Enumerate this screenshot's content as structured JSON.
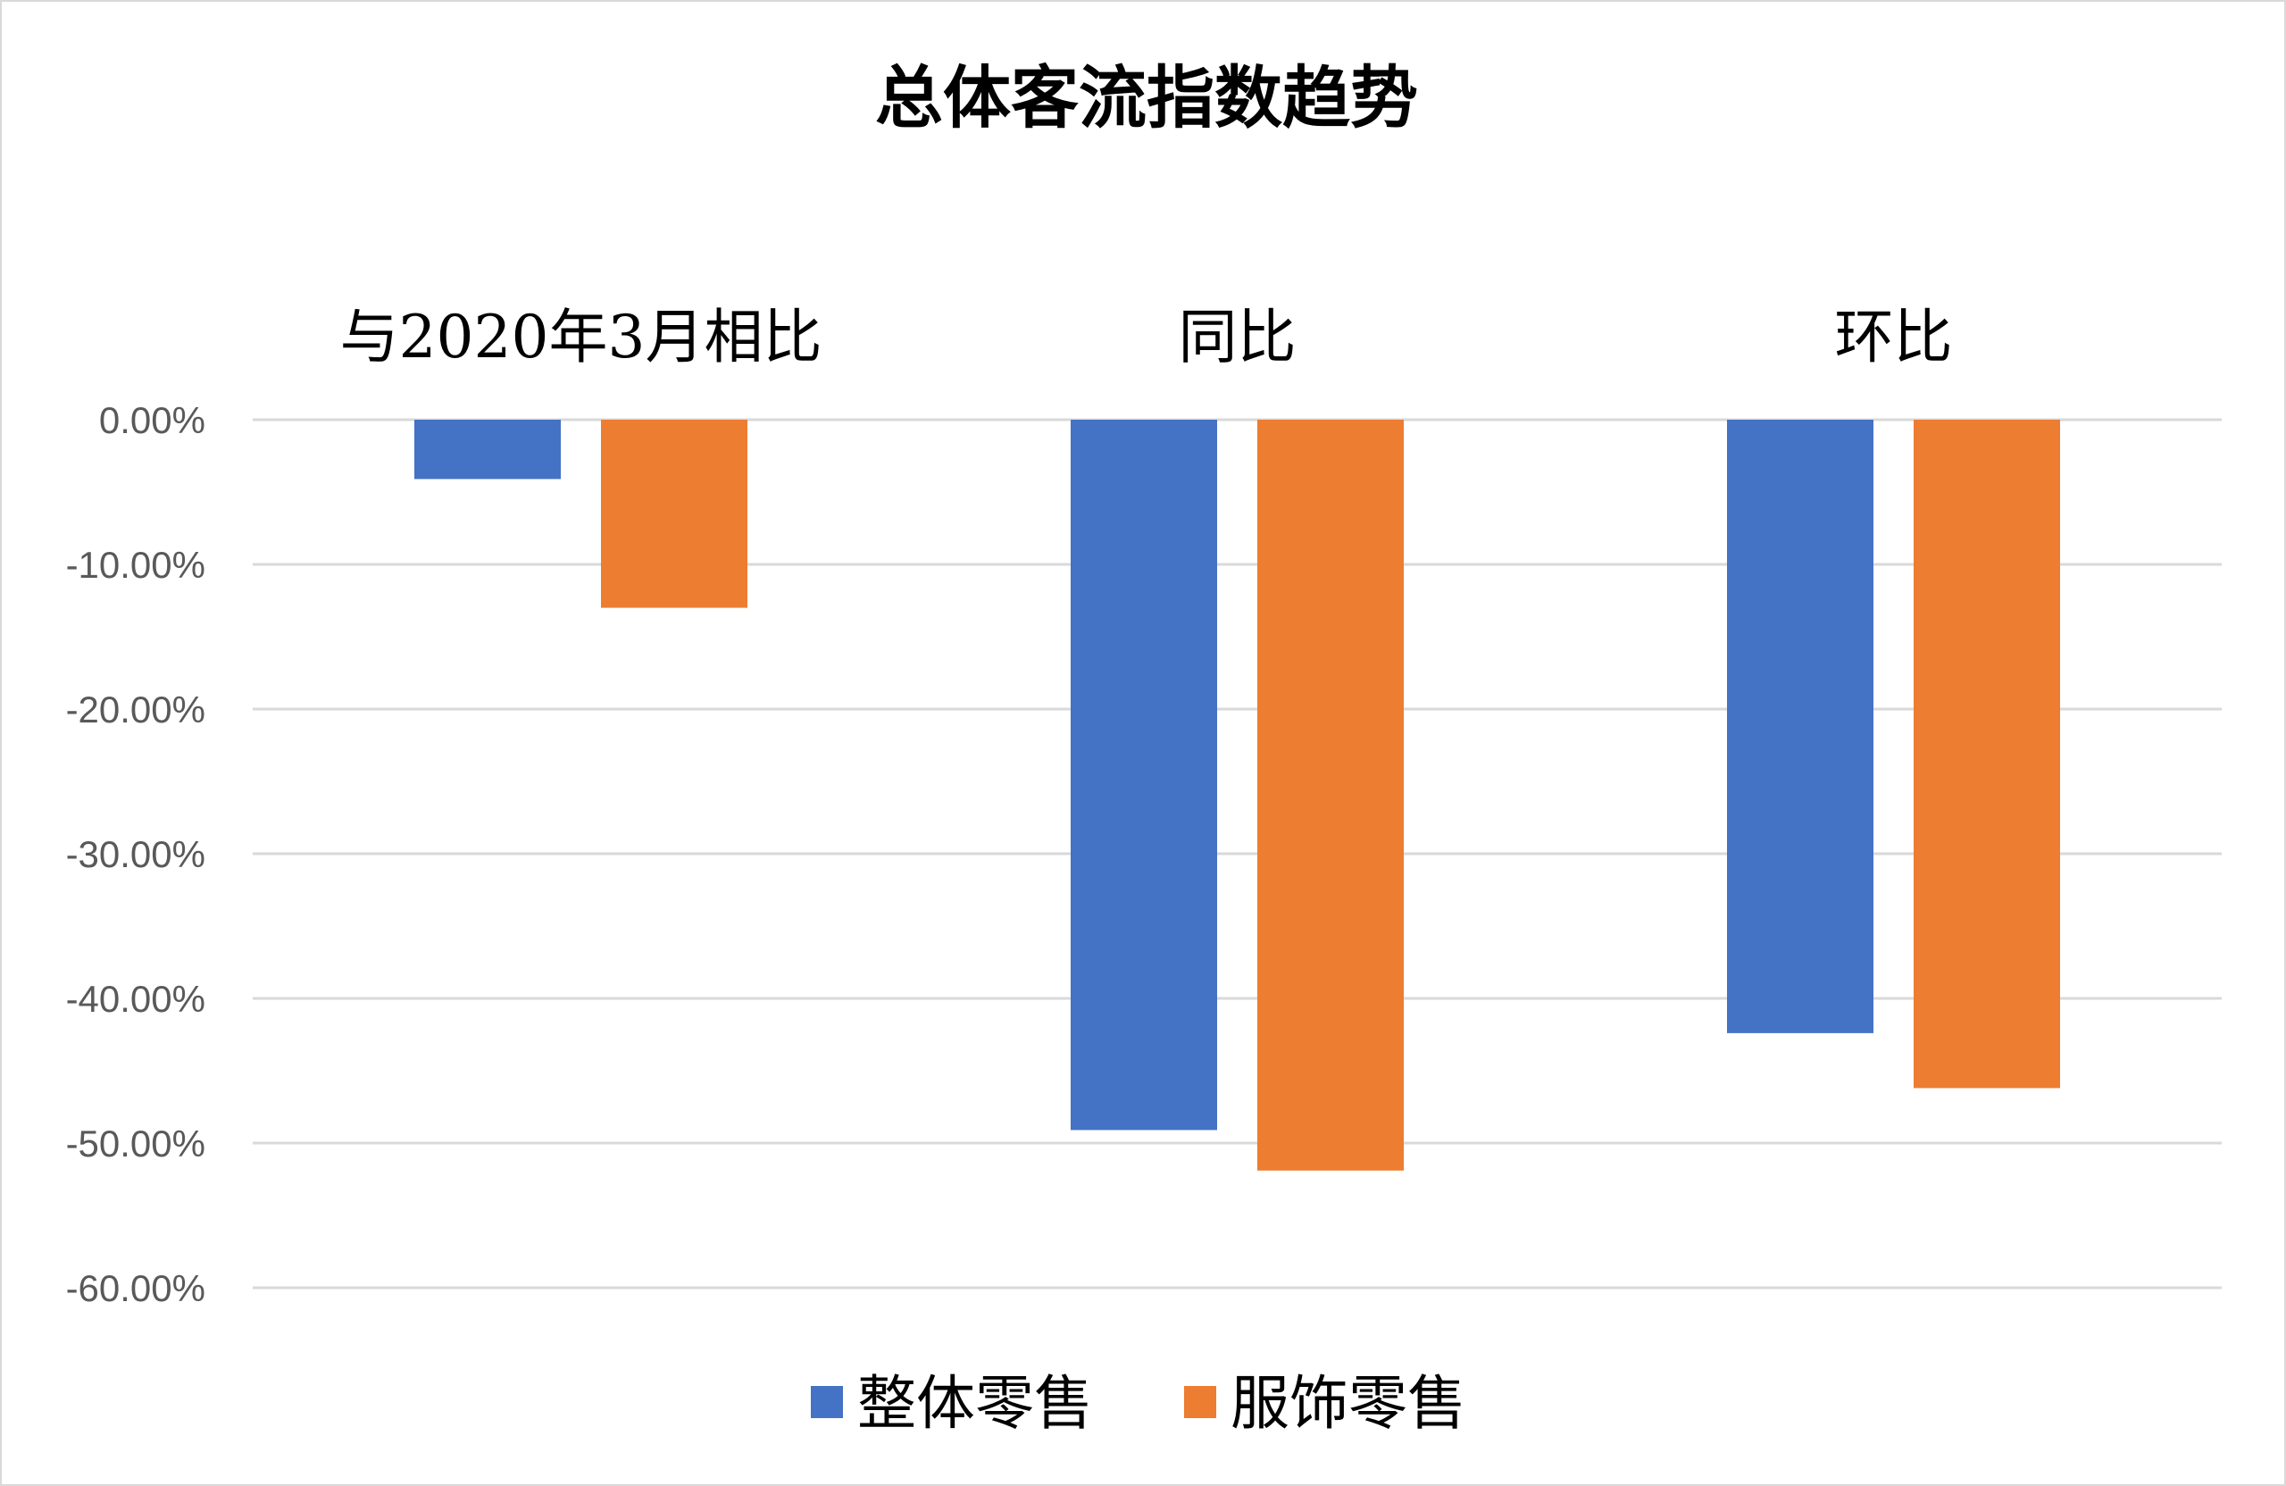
{
  "chart_data": {
    "type": "bar",
    "title": "总体客流指数趋势",
    "categories": [
      "与2020年3月相比",
      "同比",
      "环比"
    ],
    "series": [
      {
        "name": "整体零售",
        "color": "#4472C4",
        "values": [
          -4.1,
          -49.1,
          -42.4
        ]
      },
      {
        "name": "服饰零售",
        "color": "#ED7D31",
        "values": [
          -13.0,
          -51.9,
          -46.2
        ]
      }
    ],
    "y_ticks": [
      "0.00%",
      "-10.00%",
      "-20.00%",
      "-30.00%",
      "-40.00%",
      "-50.00%",
      "-60.00%"
    ],
    "ylim": [
      -60,
      0
    ],
    "grid": true,
    "legend_position": "bottom",
    "category_labels_position": "top",
    "xlabel": "",
    "ylabel": ""
  }
}
